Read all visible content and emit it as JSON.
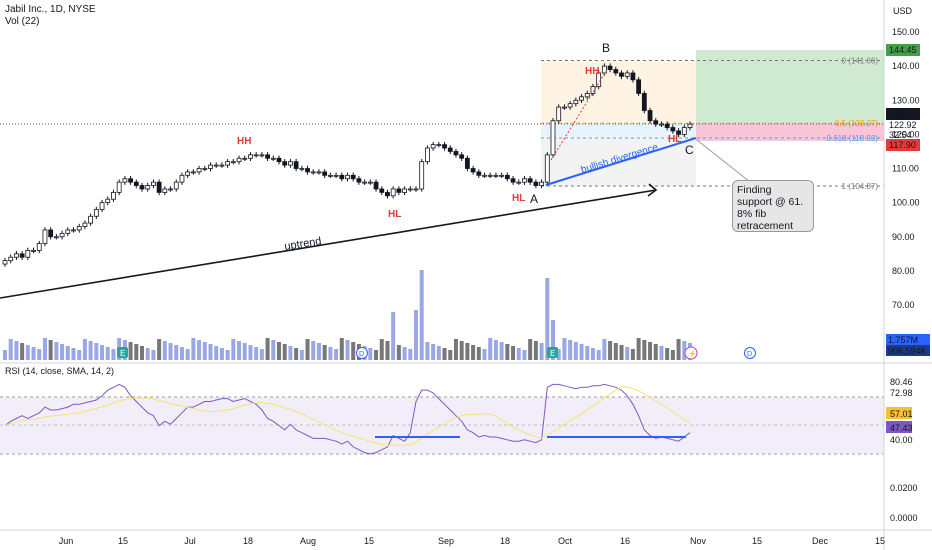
{
  "header": {
    "symbol_line": "Jabil Inc., 1D, NYSE",
    "volume_line": "Vol (22)",
    "rsi_line": "RSI (14, close, SMA, 14, 2)",
    "currency": "USD"
  },
  "colors": {
    "up": "#ffffff",
    "down": "#131722",
    "volume": "#9aa7e6",
    "rsi": "#7e57c2",
    "rsi_sma": "#f5e36a",
    "annotation_red": "#e53935",
    "blue_line": "#2962ff",
    "target_green": "#c8e6c9",
    "stop_red": "#f8bbd0"
  },
  "chart_data": [
    {
      "type": "candlestick",
      "name": "price",
      "x_ticks": [
        "Jun",
        "15",
        "Jul",
        "18",
        "Aug",
        "15",
        "Sep",
        "18",
        "Oct",
        "16",
        "Nov",
        "15",
        "Dec",
        "15"
      ],
      "y_ticks": [
        150.0,
        140.0,
        130.0,
        120.0,
        110.0,
        100.0,
        90.0,
        80.0,
        70.0
      ],
      "ylim": [
        63,
        155
      ],
      "close": [
        83,
        84,
        85,
        84,
        86,
        86,
        88,
        92,
        90,
        90,
        91,
        92,
        92,
        93,
        94,
        96,
        98,
        100,
        101,
        103,
        106,
        107,
        106,
        105,
        104,
        105,
        106,
        103,
        104,
        104,
        106,
        108,
        109,
        109,
        110,
        110,
        111,
        111,
        111,
        112,
        112,
        113,
        113,
        114,
        114,
        114,
        113,
        113,
        112,
        111,
        112,
        110,
        110,
        109,
        109,
        109,
        108,
        108,
        108,
        107,
        108,
        107,
        106,
        106,
        106,
        104,
        103,
        102,
        104,
        103,
        104,
        104,
        104,
        112,
        116,
        117,
        117,
        116,
        115,
        114,
        113,
        110,
        109,
        108,
        108,
        108,
        108,
        108,
        107,
        106,
        106,
        107,
        106,
        105,
        106,
        114,
        124,
        128,
        128,
        129,
        130,
        131,
        132,
        134,
        138,
        140,
        139,
        138,
        137,
        138,
        136,
        132,
        127,
        124,
        123,
        123,
        122,
        121,
        120,
        122,
        123
      ],
      "volume_ticks": [
        "1.757M",
        "906.594K"
      ],
      "last_price": "123.15",
      "price_labels": [
        "144.45",
        "123.15",
        "122.92",
        "32:54",
        "117.90"
      ],
      "fib_levels": [
        {
          "label": "0 (141.66)",
          "value": 141.66
        },
        {
          "label": "0.5 (123.27)",
          "value": 123.27
        },
        {
          "label": "0.618 (118.93)",
          "value": 118.93
        },
        {
          "label": "1 (104.87)",
          "value": 104.87
        }
      ],
      "annotations": [
        "HH",
        "HH",
        "HL",
        "HL",
        "HL",
        "A",
        "B",
        "C",
        "uptrend",
        "bullish divergence"
      ],
      "callout": "Finding support @ 61. 8% fib retracement"
    },
    {
      "type": "line",
      "name": "RSI (14, close, SMA, 14, 2)",
      "y_ticks": [
        "80.46",
        "72.98",
        "57.01",
        "47.43",
        "40.00",
        "0.0200",
        "0.0000"
      ],
      "rsi": [
        55,
        58,
        60,
        62,
        60,
        62,
        64,
        68,
        66,
        66,
        67,
        68,
        70,
        70,
        71,
        72,
        73,
        76,
        80,
        82,
        84,
        82,
        76,
        72,
        68,
        64,
        62,
        55,
        58,
        56,
        60,
        64,
        68,
        68,
        70,
        72,
        72,
        73,
        74,
        74,
        72,
        73,
        74,
        72,
        70,
        66,
        60,
        58,
        55,
        52,
        56,
        52,
        50,
        48,
        46,
        46,
        46,
        45,
        44,
        42,
        44,
        40,
        38,
        36,
        35,
        36,
        38,
        40,
        48,
        46,
        44,
        50,
        72,
        80,
        80,
        78,
        74,
        70,
        66,
        62,
        58,
        52,
        50,
        47,
        48,
        47,
        47,
        46,
        45,
        44,
        44,
        45,
        44,
        43,
        45,
        82,
        84,
        84,
        83,
        82,
        81,
        82,
        82,
        83,
        83,
        84,
        83,
        82,
        80,
        76,
        70,
        62,
        52,
        48,
        46,
        47,
        46,
        45,
        44,
        47,
        50
      ]
    }
  ]
}
